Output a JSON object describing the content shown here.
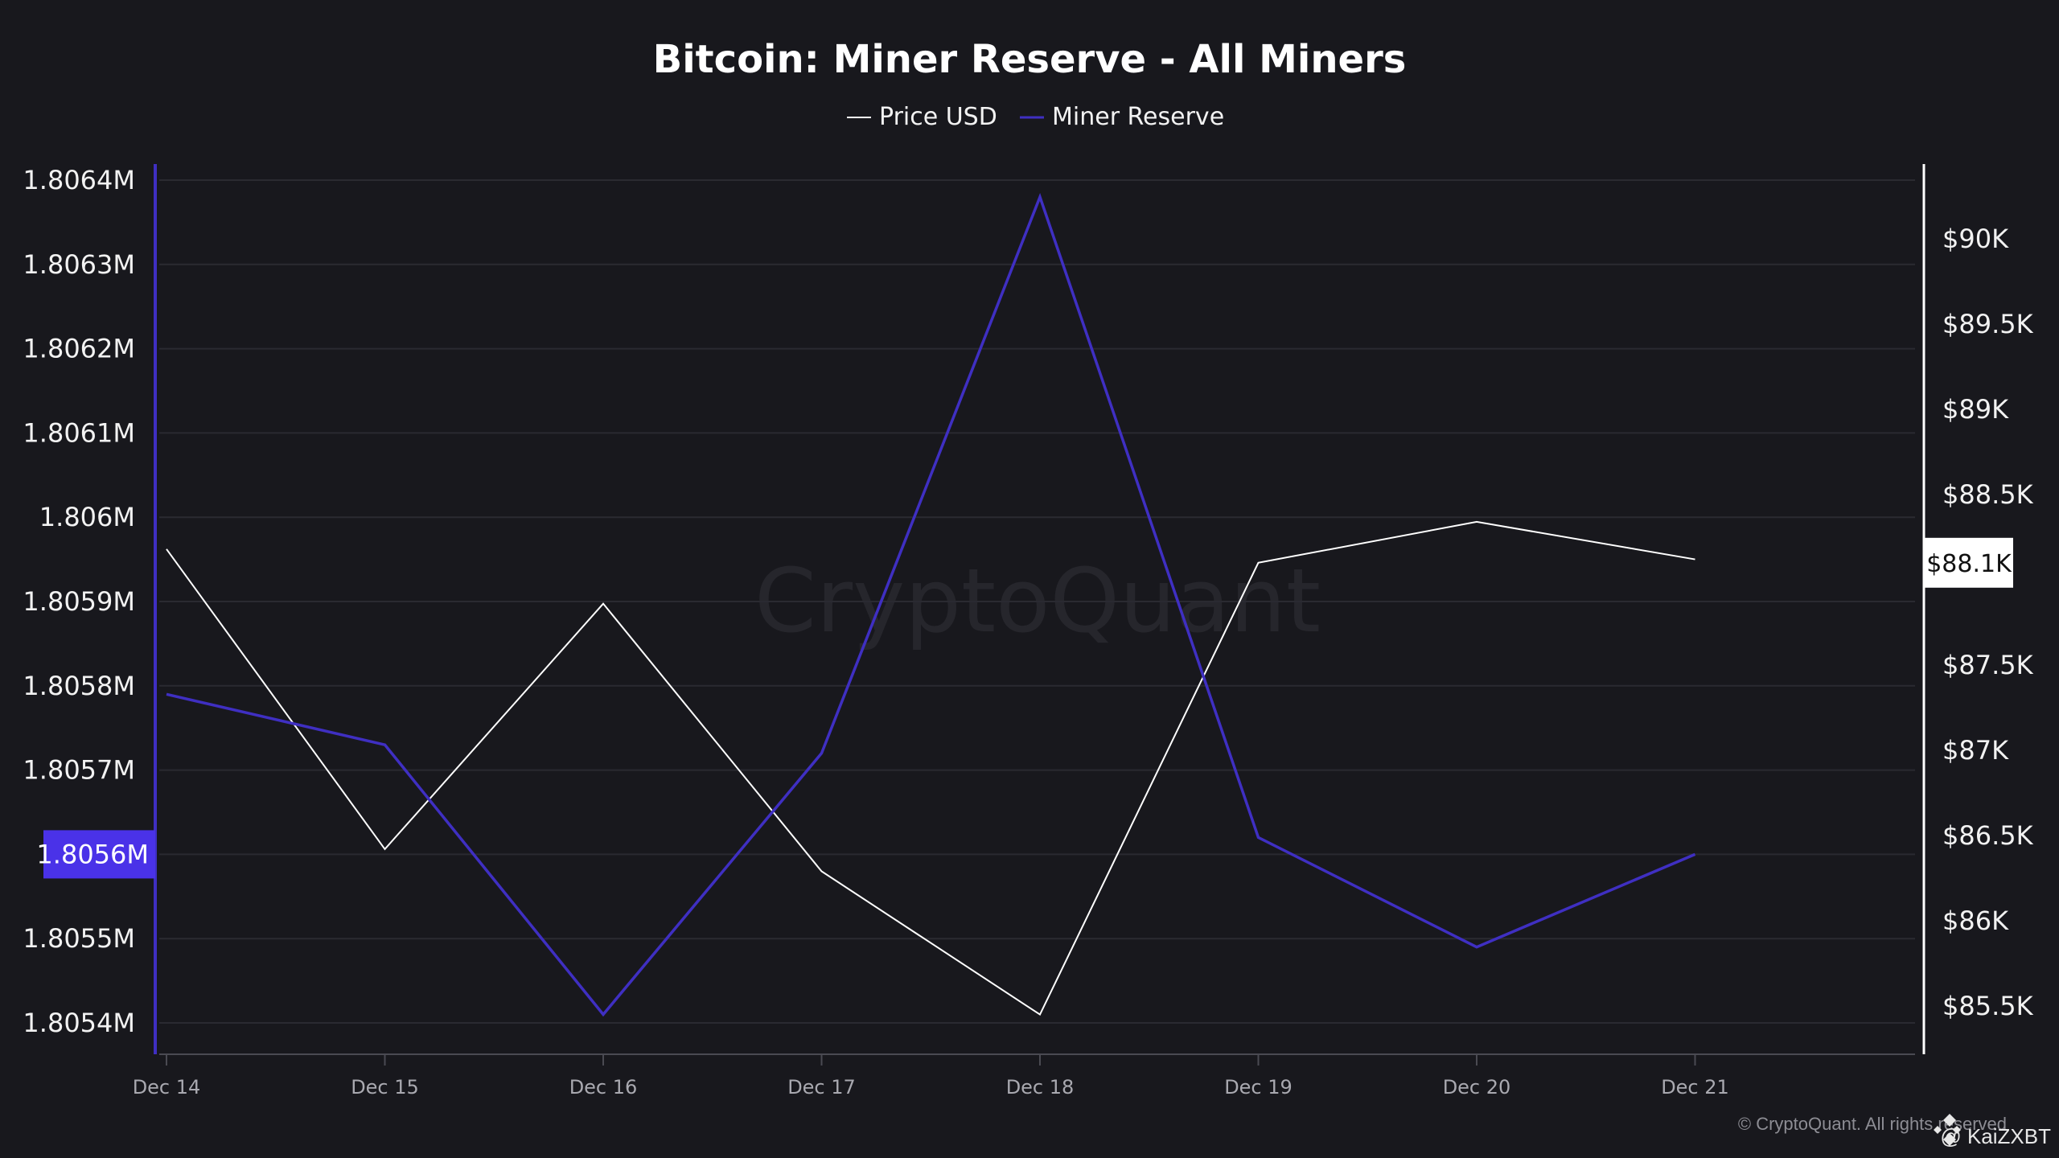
{
  "chart_data": {
    "type": "line",
    "title": "Bitcoin: Miner Reserve - All Miners",
    "categories": [
      "Dec 14",
      "Dec 15",
      "Dec 16",
      "Dec 17",
      "Dec 18",
      "Dec 19",
      "Dec 20",
      "Dec 21"
    ],
    "series": [
      {
        "name": "Price USD",
        "axis": "right",
        "color": "#ffffff",
        "values": [
          88180,
          86420,
          87860,
          86290,
          85450,
          88100,
          88340,
          88120
        ]
      },
      {
        "name": "Miner Reserve",
        "axis": "left",
        "color": "#3f2fc2",
        "values": [
          1805790,
          1805730,
          1805410,
          1805720,
          1806380,
          1805620,
          1805490,
          1805600
        ]
      }
    ],
    "left_axis": {
      "range": [
        1805400,
        1806400
      ],
      "ticks": [
        {
          "v": 1806400,
          "label": "1.8064M"
        },
        {
          "v": 1806300,
          "label": "1.8063M"
        },
        {
          "v": 1806200,
          "label": "1.8062M"
        },
        {
          "v": 1806100,
          "label": "1.8061M"
        },
        {
          "v": 1806000,
          "label": "1.806M"
        },
        {
          "v": 1805900,
          "label": "1.8059M"
        },
        {
          "v": 1805800,
          "label": "1.8058M"
        },
        {
          "v": 1805700,
          "label": "1.8057M"
        },
        {
          "v": 1805500,
          "label": "1.8055M"
        },
        {
          "v": 1805400,
          "label": "1.8054M"
        }
      ],
      "highlight": {
        "v": 1805600,
        "label": "1.8056M",
        "color": "#4a32e8"
      }
    },
    "right_axis": {
      "range": [
        85500,
        90000
      ],
      "ticks": [
        {
          "v": 90000,
          "label": "$90K"
        },
        {
          "v": 89500,
          "label": "$89.5K"
        },
        {
          "v": 89000,
          "label": "$89K"
        },
        {
          "v": 88500,
          "label": "$88.5K"
        },
        {
          "v": 87500,
          "label": "$87.5K"
        },
        {
          "v": 87000,
          "label": "$87K"
        },
        {
          "v": 86500,
          "label": "$86.5K"
        },
        {
          "v": 86000,
          "label": "$86K"
        },
        {
          "v": 85500,
          "label": "$85.5K"
        }
      ],
      "highlight": {
        "v": 88100,
        "label": "$88.1K",
        "color": "#ffffff"
      }
    },
    "grid": true,
    "legend_placement": "top-center"
  },
  "watermark": "CryptoQuant",
  "footer": {
    "copyright": "© CryptoQuant. All rights reserved",
    "author": "@ KaiZXBT"
  }
}
